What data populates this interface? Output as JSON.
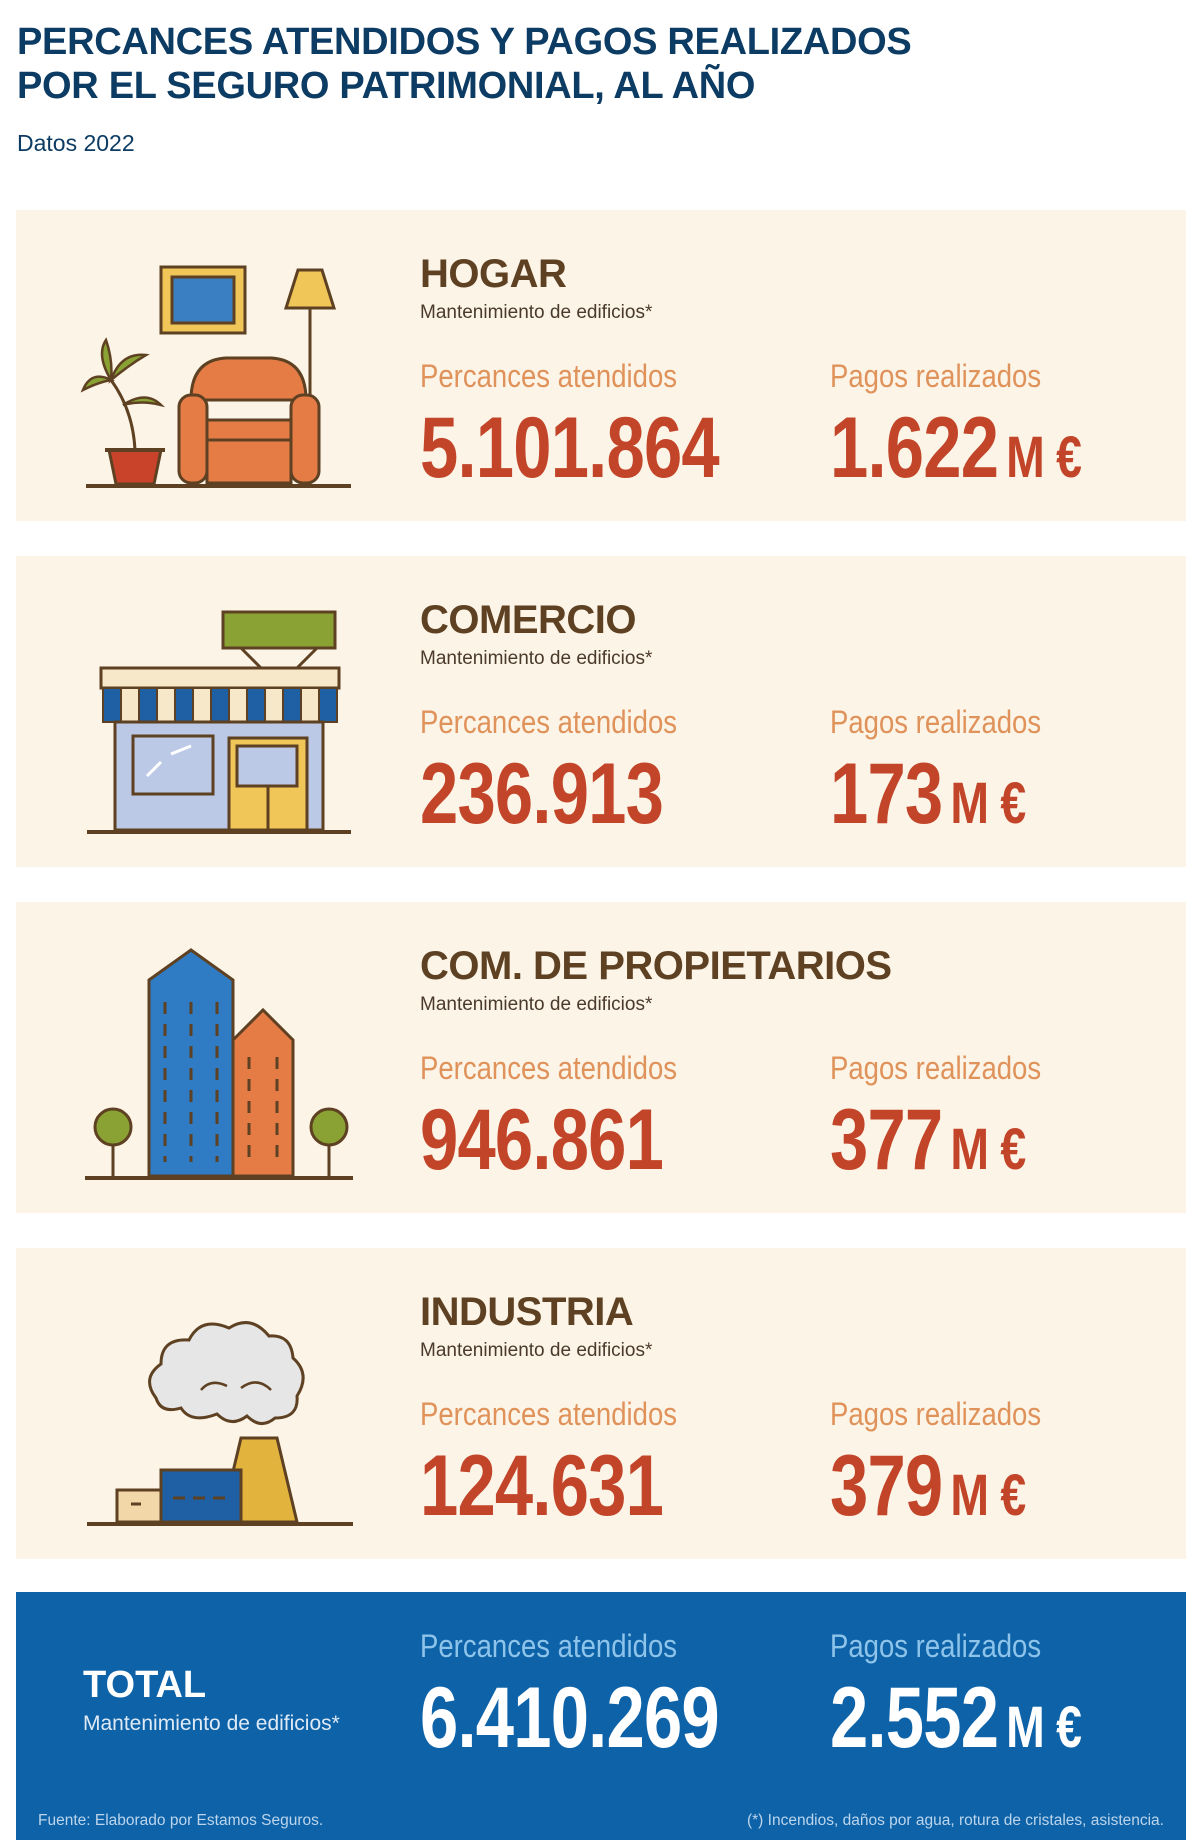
{
  "title_line1": "PERCANCES ATENDIDOS Y PAGOS REALIZADOS",
  "title_line2": "POR EL SEGURO PATRIMONIAL, AL AÑO",
  "subtitle": "Datos 2022",
  "cards": [
    {
      "name": "HOGAR",
      "sub": "Mantenimiento de edificios*",
      "percances_label": "Percances atendidos",
      "percances_value": "5.101.864",
      "pagos_label": "Pagos realizados",
      "pagos_value": "1.622",
      "pagos_unit": "M €"
    },
    {
      "name": "COMERCIO",
      "sub": "Mantenimiento de edificios*",
      "percances_label": "Percances atendidos",
      "percances_value": "236.913",
      "pagos_label": "Pagos realizados",
      "pagos_value": "173",
      "pagos_unit": "M €"
    },
    {
      "name": "COM. DE PROPIETARIOS",
      "sub": "Mantenimiento de edificios*",
      "percances_label": "Percances atendidos",
      "percances_value": "946.861",
      "pagos_label": "Pagos realizados",
      "pagos_value": "377",
      "pagos_unit": "M €"
    },
    {
      "name": "INDUSTRIA",
      "sub": "Mantenimiento de edificios*",
      "percances_label": "Percances atendidos",
      "percances_value": "124.631",
      "pagos_label": "Pagos realizados",
      "pagos_value": "379",
      "pagos_unit": "M €"
    }
  ],
  "total": {
    "name": "TOTAL",
    "sub": "Mantenimiento de edificios*",
    "percances_label": "Percances atendidos",
    "percances_value": "6.410.269",
    "pagos_label": "Pagos realizados",
    "pagos_value": "2.552",
    "pagos_unit": "M €"
  },
  "source": "Fuente: Elaborado por Estamos Seguros.",
  "footnote": "(*) Incendios, daños por agua, rotura de cristales, asistencia.",
  "icons": [
    "living-room-icon",
    "shop-icon",
    "buildings-icon",
    "factory-icon"
  ],
  "colors": {
    "title": "#0c3b63",
    "card_bg": "#fcf4e6",
    "value_red": "#c2452a",
    "label_orange": "#e0925b",
    "total_bg": "#0d62a8"
  }
}
